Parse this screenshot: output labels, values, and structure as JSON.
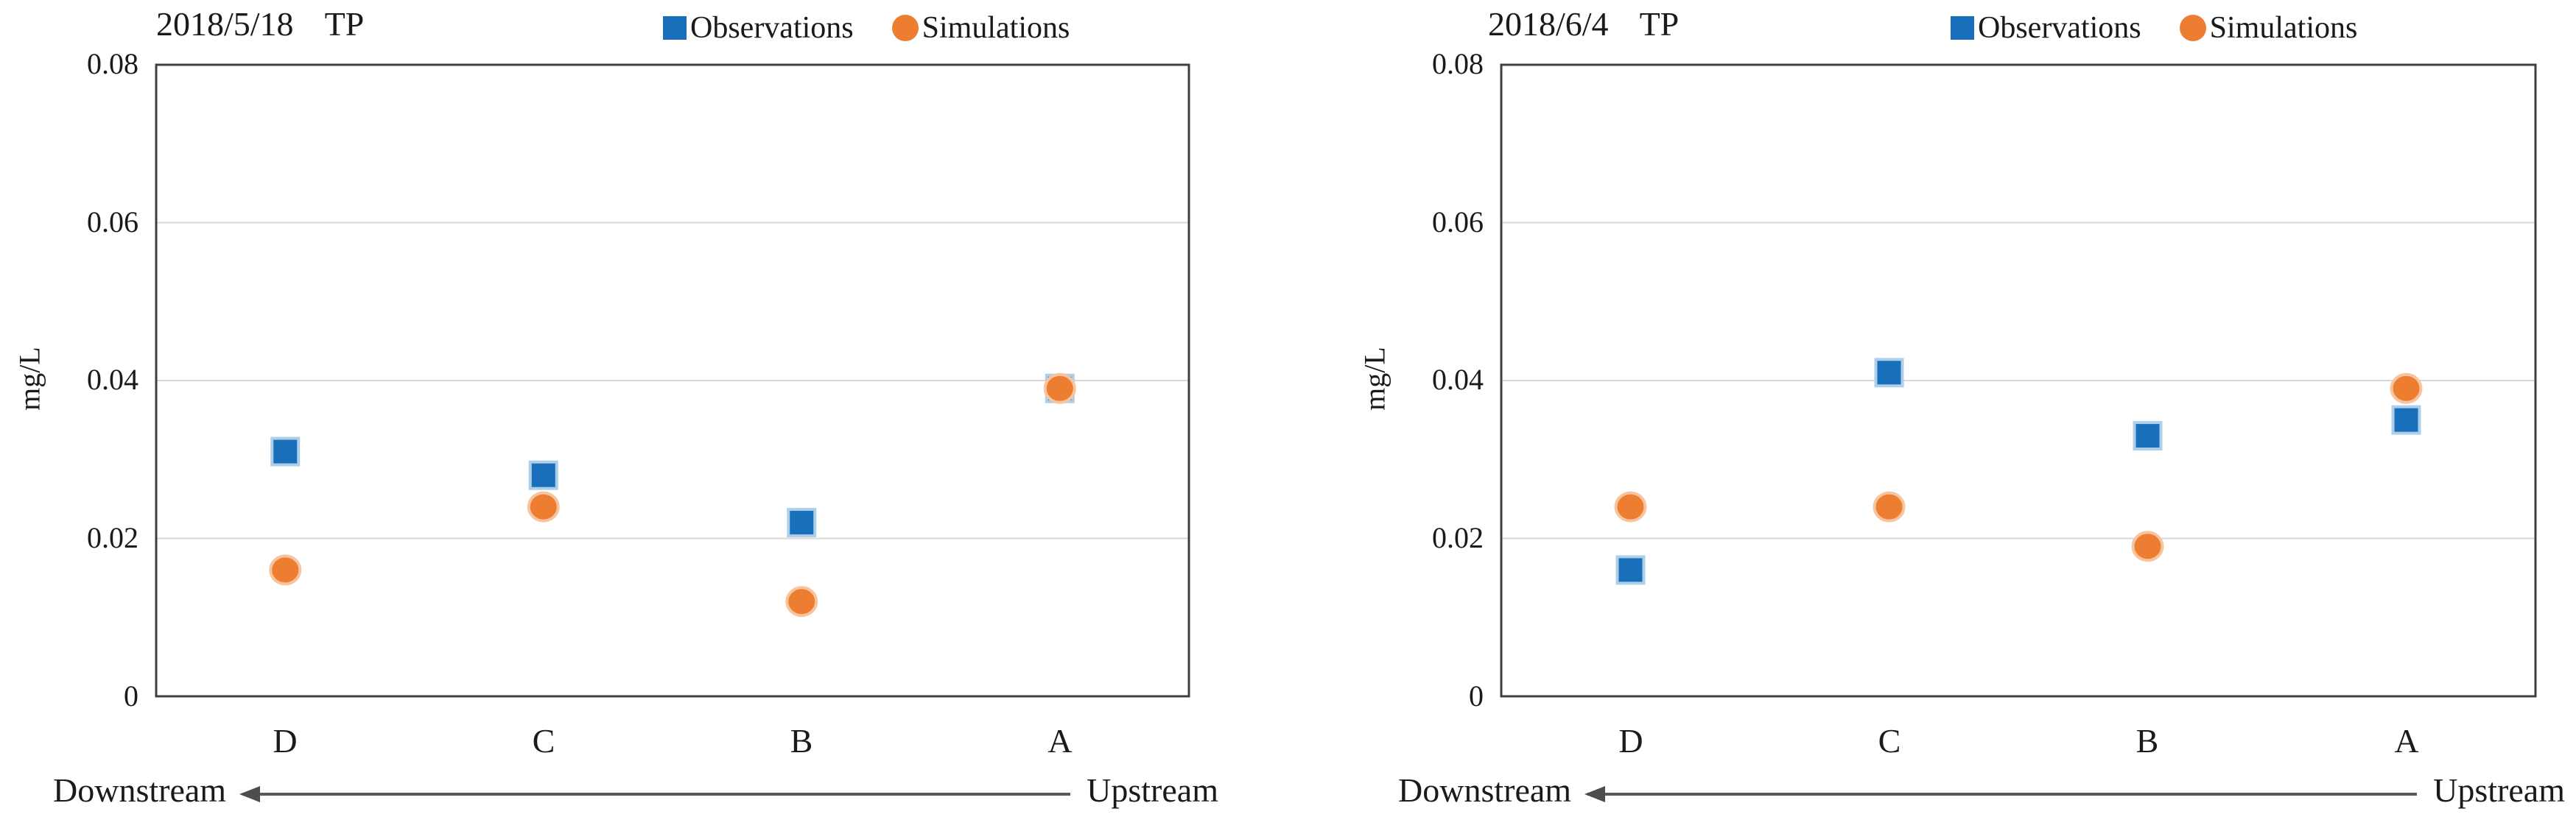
{
  "chart_data": [
    {
      "type": "scatter",
      "title_date": "2018/5/18",
      "title_metric": "TP",
      "ylabel": "mg/L",
      "ylim": [
        0,
        0.08
      ],
      "y_ticks": [
        "0",
        "0.02",
        "0.04",
        "0.06",
        "0.08"
      ],
      "y_tick_values": [
        0,
        0.02,
        0.04,
        0.06,
        0.08
      ],
      "grid": "horizontal-only",
      "legend_position": "top-right",
      "x_categories": [
        "D",
        "C",
        "B",
        "A"
      ],
      "legend": [
        {
          "name": "Observations",
          "marker": "square",
          "color": "#1a6fbb"
        },
        {
          "name": "Simulations",
          "marker": "circle",
          "color": "#ed7d31"
        }
      ],
      "series": [
        {
          "name": "Observations",
          "marker": "square",
          "color": "#1a6fbb",
          "halo": "#aecfe9",
          "values": [
            0.031,
            0.028,
            0.022,
            0.039
          ]
        },
        {
          "name": "Simulations",
          "marker": "circle",
          "color": "#ed7d31",
          "halo": "#f6c49f",
          "values": [
            0.016,
            0.024,
            0.012,
            0.039
          ]
        }
      ],
      "footer": {
        "left": "Downstream",
        "right": "Upstream"
      }
    },
    {
      "type": "scatter",
      "title_date": "2018/6/4",
      "title_metric": "TP",
      "ylabel": "mg/L",
      "ylim": [
        0,
        0.08
      ],
      "y_ticks": [
        "0",
        "0.02",
        "0.04",
        "0.06",
        "0.08"
      ],
      "y_tick_values": [
        0,
        0.02,
        0.04,
        0.06,
        0.08
      ],
      "grid": "horizontal-only",
      "legend_position": "top-right",
      "x_categories": [
        "D",
        "C",
        "B",
        "A"
      ],
      "legend": [
        {
          "name": "Observations",
          "marker": "square",
          "color": "#1a6fbb"
        },
        {
          "name": "Simulations",
          "marker": "circle",
          "color": "#ed7d31"
        }
      ],
      "series": [
        {
          "name": "Observations",
          "marker": "square",
          "color": "#1a6fbb",
          "halo": "#aecfe9",
          "values": [
            0.016,
            0.041,
            0.033,
            0.035
          ]
        },
        {
          "name": "Simulations",
          "marker": "circle",
          "color": "#ed7d31",
          "halo": "#f6c49f",
          "values": [
            0.024,
            0.024,
            0.019,
            0.039
          ]
        }
      ],
      "footer": {
        "left": "Downstream",
        "right": "Upstream"
      }
    }
  ]
}
